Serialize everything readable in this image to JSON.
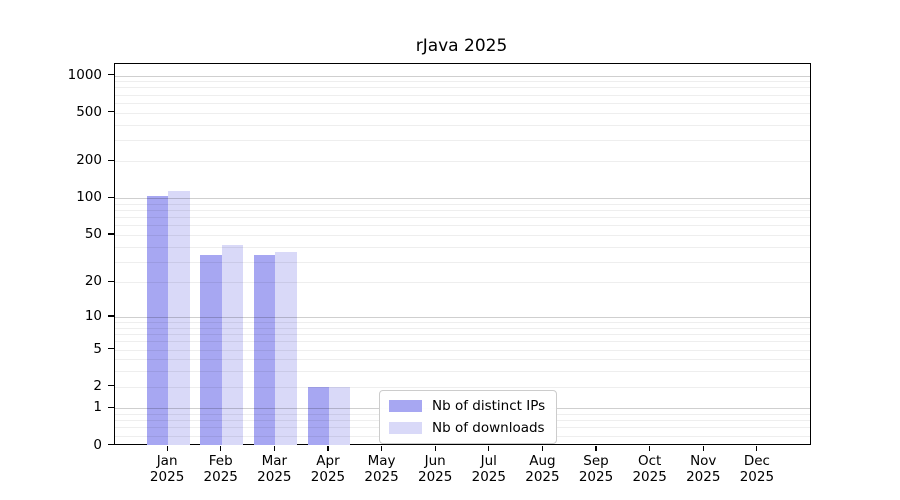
{
  "title": "rJava 2025",
  "chart_data": {
    "type": "bar",
    "title": "rJava 2025",
    "x_categories_months": [
      "Jan",
      "Feb",
      "Mar",
      "Apr",
      "May",
      "Jun",
      "Jul",
      "Aug",
      "Sep",
      "Oct",
      "Nov",
      "Dec"
    ],
    "x_year": "2025",
    "series": [
      {
        "name": "Nb of distinct IPs",
        "color": "#a7a7f2",
        "values": [
          105,
          34,
          34,
          2,
          0,
          0,
          0,
          0,
          0,
          0,
          0,
          0
        ]
      },
      {
        "name": "Nb of downloads",
        "color": "#d9d9f8",
        "values": [
          115,
          41,
          36,
          2,
          0,
          0,
          0,
          0,
          0,
          0,
          0,
          0
        ]
      }
    ],
    "yscale": "log1p",
    "ylim": [
      0,
      1240
    ],
    "yticks": [
      0,
      1,
      2,
      5,
      10,
      20,
      50,
      100,
      200,
      500,
      1000
    ],
    "grid_major": [
      1,
      10,
      100,
      1000
    ],
    "grid_minor": [
      0.2,
      0.4,
      0.6,
      0.8,
      2,
      3,
      4,
      5,
      6,
      7,
      8,
      9,
      20,
      30,
      40,
      50,
      60,
      70,
      80,
      90,
      200,
      300,
      400,
      500,
      600,
      700,
      800,
      900
    ],
    "grid": "on",
    "legend_position": "lower center",
    "xlabel": "",
    "ylabel": ""
  }
}
